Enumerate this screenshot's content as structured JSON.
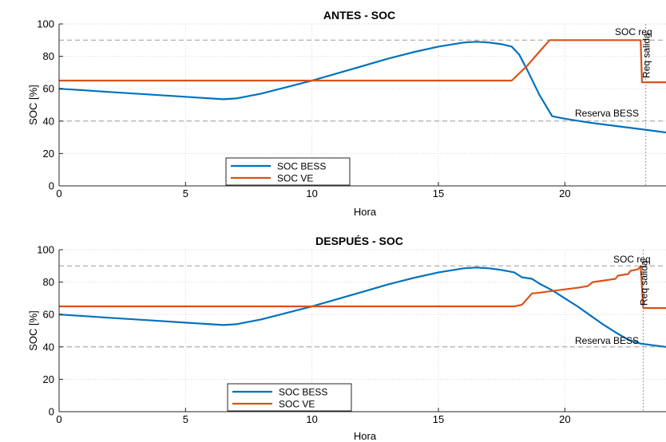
{
  "colors": {
    "bess": "#0072BD",
    "ve": "#D95319",
    "grid": "#d9d9d9",
    "ref": "#9a9a9a"
  },
  "chart_data": [
    {
      "type": "line",
      "title": "ANTES - SOC",
      "xlabel": "Hora",
      "ylabel": "SOC [%]",
      "xlim": [
        0,
        24
      ],
      "ylim": [
        0,
        100
      ],
      "xticks": [
        0,
        5,
        10,
        15,
        20
      ],
      "yticks": [
        0,
        20,
        40,
        60,
        80,
        100
      ],
      "grid": true,
      "legend_position": "bottom-left",
      "series": [
        {
          "name": "SOC BESS",
          "color": "#0072BD",
          "x": [
            0,
            1,
            2,
            3,
            4,
            5,
            6,
            6.5,
            7,
            8,
            9,
            10,
            11,
            12,
            13,
            14,
            15,
            16,
            16.5,
            17,
            17.5,
            17.9,
            18.2,
            18.5,
            19,
            19.5,
            20,
            21,
            22,
            23,
            24
          ],
          "y": [
            60,
            59,
            58,
            57,
            56,
            55,
            54,
            53.5,
            54,
            57,
            61,
            65,
            69.5,
            74,
            78.5,
            82.5,
            86,
            88.5,
            89,
            88.5,
            87.5,
            86,
            81,
            72,
            56,
            43,
            41.5,
            39,
            37,
            35,
            33
          ]
        },
        {
          "name": "SOC VE",
          "color": "#D95319",
          "x": [
            0,
            17.9,
            18.5,
            19,
            19.4,
            20,
            21,
            22,
            23,
            23.05,
            23.3,
            24
          ],
          "y": [
            65,
            65,
            74,
            83,
            90,
            90,
            90,
            90,
            90,
            64,
            64,
            64
          ]
        }
      ],
      "reference_lines": [
        90,
        40
      ],
      "vertical_lines": [
        23.2
      ],
      "annotations": [
        "SOC req",
        "Req salida",
        "Reserva BESS"
      ]
    },
    {
      "type": "line",
      "title": "DESPUÉS - SOC",
      "xlabel": "Hora",
      "ylabel": "SOC [%]",
      "xlim": [
        0,
        24
      ],
      "ylim": [
        0,
        100
      ],
      "xticks": [
        0,
        5,
        10,
        15,
        20
      ],
      "yticks": [
        0,
        20,
        40,
        60,
        80,
        100
      ],
      "grid": true,
      "legend_position": "bottom-left",
      "series": [
        {
          "name": "SOC BESS",
          "color": "#0072BD",
          "x": [
            0,
            1,
            2,
            3,
            4,
            5,
            6,
            6.5,
            7,
            8,
            9,
            10,
            11,
            12,
            13,
            14,
            15,
            16,
            16.5,
            17,
            17.5,
            18,
            18.3,
            18.7,
            19,
            19.5,
            20,
            20.5,
            21,
            21.5,
            22,
            22.5,
            23,
            23.5,
            24
          ],
          "y": [
            60,
            59,
            58,
            57,
            56,
            55,
            54,
            53.5,
            54,
            57,
            61,
            65,
            69.5,
            74,
            78.5,
            82.5,
            86,
            88.5,
            89,
            88.5,
            87.5,
            86,
            83,
            82,
            79,
            75,
            70,
            65,
            59.5,
            54,
            49,
            44.5,
            42,
            41,
            40
          ]
        },
        {
          "name": "SOC VE",
          "color": "#D95319",
          "x": [
            0,
            18,
            18.3,
            18.7,
            19,
            20,
            20.5,
            20.9,
            21.1,
            22,
            22.1,
            22.5,
            22.6,
            22.9,
            23.0,
            23.1,
            23.3,
            24
          ],
          "y": [
            65,
            65,
            66,
            73,
            73.5,
            75.5,
            76.5,
            77.5,
            80,
            82,
            84,
            85,
            87,
            88,
            90,
            64,
            64,
            64
          ]
        }
      ],
      "reference_lines": [
        90,
        40
      ],
      "vertical_lines": [
        23.1
      ],
      "annotations": [
        "SOC req",
        "Req salida",
        "Reserva BESS"
      ]
    }
  ]
}
